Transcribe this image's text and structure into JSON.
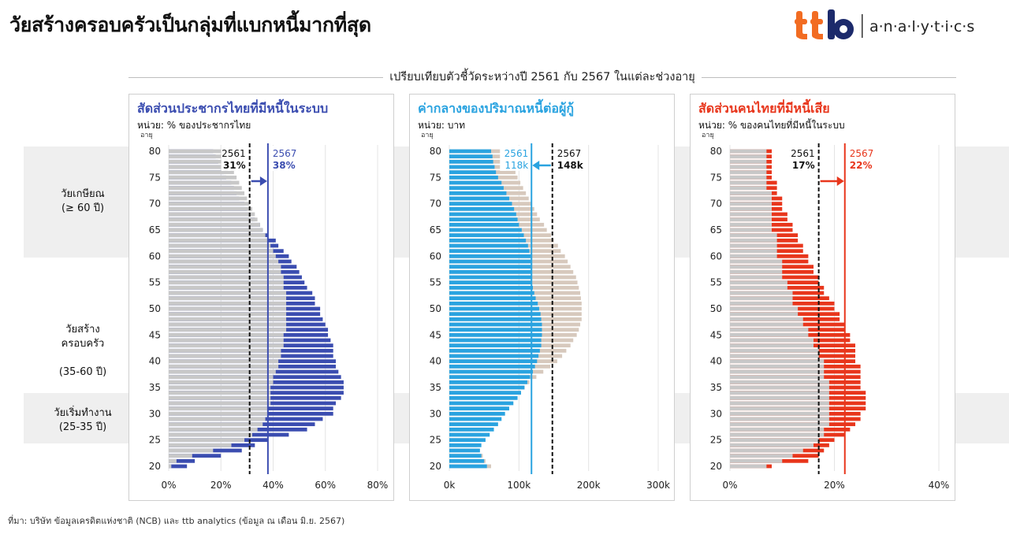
{
  "title": "วัยสร้างครอบครัวเป็นกลุ่มที่แบกหนี้มากที่สุด",
  "logo": {
    "mark": "ttb",
    "text": "a·n·a·l·y·t·i·c·s"
  },
  "subtitle": "เปรียบเทียบตัวชี้วัดระหว่างปี 2561 กับ 2567 ในแต่ละช่วงอายุ",
  "age_groups": [
    {
      "label": "วัยเกษียณ",
      "range": "(≥ 60 ปี)"
    },
    {
      "label": "วัยสร้าง\nครอบครัว",
      "range": "(35-60 ปี)"
    },
    {
      "label": "วัยเริ่มทำงาน",
      "range": "(25-35 ปี)"
    }
  ],
  "source": "ที่มา: บริษัท ข้อมูลเครดิตแห่งชาติ (NCB) และ ttb analytics (ข้อมูล ณ เดือน มิ.ย. 2567)",
  "colors": {
    "blue": "#3b4db0",
    "sky": "#2aa3e0",
    "red": "#e8361c",
    "grey": "#c8c8c8",
    "beige": "#d7c9bd",
    "lightblue": "#bfe3f2"
  },
  "chart_data": [
    {
      "type": "bar",
      "orientation": "horizontal",
      "title": "สัดส่วนประชากรไทยที่มีหนี้ในระบบ",
      "unit": "หน่วย: % ของประชากรไทย",
      "ylabel": "อายุ",
      "age_range": [
        20,
        80
      ],
      "y_ticks": [
        "80",
        "75",
        "70",
        "65",
        "60",
        "55",
        "50",
        "45",
        "40",
        "35",
        "30",
        "25",
        "20"
      ],
      "x_ticks": [
        "0%",
        "20%",
        "40%",
        "60%",
        "80%"
      ],
      "xlim": [
        0,
        80
      ],
      "series": [
        {
          "name": "2561",
          "values": [
            1,
            3,
            9,
            17,
            24,
            29,
            32,
            34,
            36,
            37,
            38,
            38,
            39,
            39,
            39,
            39,
            40,
            40,
            41,
            42,
            42,
            43,
            43,
            44,
            44,
            44,
            45,
            45,
            45,
            45,
            45,
            45,
            45,
            45,
            44,
            44,
            44,
            43,
            43,
            42,
            41,
            40,
            39,
            38,
            37,
            36,
            35,
            34,
            33,
            32,
            31,
            30,
            29,
            28,
            27,
            26,
            25,
            24,
            23,
            22,
            21
          ]
        },
        {
          "name": "2567",
          "values": [
            7,
            10,
            20,
            28,
            33,
            38,
            46,
            53,
            56,
            59,
            63,
            63,
            64,
            66,
            67,
            67,
            67,
            66,
            65,
            64,
            64,
            63,
            63,
            63,
            62,
            61,
            61,
            60,
            59,
            58,
            58,
            56,
            56,
            55,
            53,
            52,
            51,
            50,
            49,
            47,
            46,
            44,
            42,
            41,
            38,
            36,
            35,
            33,
            31,
            30,
            29,
            27,
            26,
            25,
            24,
            22,
            21,
            20,
            19,
            18,
            17
          ]
        }
      ],
      "reference_lines": [
        {
          "label": "2561",
          "value": 31,
          "value_label": "31%"
        },
        {
          "label": "2567",
          "value": 38,
          "value_label": "38%"
        }
      ]
    },
    {
      "type": "bar",
      "orientation": "horizontal",
      "title": "ค่ากลางของปริมาณหนี้ต่อผู้กู้",
      "unit": "หน่วย: บาท",
      "ylabel": "อายุ",
      "age_range": [
        20,
        80
      ],
      "y_ticks": [
        "80",
        "75",
        "70",
        "65",
        "60",
        "55",
        "50",
        "45",
        "40",
        "35",
        "30",
        "25",
        "20"
      ],
      "x_ticks": [
        "0k",
        "100k",
        "200k",
        "300k"
      ],
      "xlim": [
        0,
        300
      ],
      "series": [
        {
          "name": "2561",
          "values": [
            60,
            52,
            48,
            42,
            40,
            40,
            45,
            52,
            60,
            66,
            74,
            82,
            88,
            96,
            102,
            108,
            115,
            125,
            135,
            145,
            155,
            162,
            168,
            174,
            178,
            183,
            186,
            188,
            190,
            190,
            190,
            190,
            189,
            188,
            186,
            184,
            182,
            178,
            174,
            170,
            166,
            160,
            156,
            150,
            146,
            140,
            136,
            130,
            126,
            122,
            118,
            114,
            110,
            106,
            102,
            98,
            95,
            92,
            90,
            88,
            85
          ]
        },
        {
          "name": "2567",
          "values": [
            54,
            50,
            46,
            44,
            46,
            52,
            58,
            64,
            70,
            75,
            80,
            86,
            92,
            98,
            103,
            108,
            112,
            116,
            120,
            123,
            126,
            128,
            130,
            132,
            132,
            133,
            133,
            133,
            132,
            131,
            129,
            127,
            124,
            122,
            120,
            118,
            118,
            118,
            117,
            117,
            117,
            115,
            113,
            110,
            107,
            104,
            100,
            98,
            96,
            93,
            90,
            86,
            82,
            78,
            75,
            70,
            67,
            65,
            63,
            62,
            60
          ]
        }
      ],
      "reference_lines": [
        {
          "label": "2561",
          "value": 118,
          "value_label": "118k"
        },
        {
          "label": "2567",
          "value": 148,
          "value_label": "148k"
        }
      ]
    },
    {
      "type": "bar",
      "orientation": "horizontal",
      "title": "สัดส่วนคนไทยที่มีหนี้เสีย",
      "unit": "หน่วย: % ของคนไทยที่มีหนี้ในระบบ",
      "ylabel": "อายุ",
      "age_range": [
        20,
        80
      ],
      "y_ticks": [
        "80",
        "75",
        "70",
        "65",
        "60",
        "55",
        "50",
        "45",
        "40",
        "35",
        "30",
        "25",
        "20"
      ],
      "x_ticks": [
        "0%",
        "20%",
        "40%"
      ],
      "xlim": [
        0,
        40
      ],
      "series": [
        {
          "name": "2561",
          "values": [
            7,
            10,
            12,
            14,
            16,
            17,
            18,
            18,
            19,
            19,
            19,
            19,
            19,
            19,
            19,
            19,
            19,
            18,
            18,
            18,
            18,
            17,
            17,
            16,
            16,
            15,
            15,
            14,
            14,
            13,
            13,
            12,
            12,
            12,
            11,
            11,
            10,
            10,
            10,
            10,
            9,
            9,
            9,
            9,
            9,
            8,
            8,
            8,
            8,
            8,
            8,
            8,
            8,
            7,
            7,
            7,
            7,
            7,
            7,
            7,
            7
          ]
        },
        {
          "name": "2567",
          "values": [
            8,
            15,
            17,
            18,
            19,
            20,
            22,
            23,
            24,
            25,
            25,
            26,
            26,
            26,
            26,
            25,
            25,
            25,
            25,
            25,
            24,
            24,
            24,
            24,
            23,
            23,
            22,
            22,
            21,
            21,
            20,
            20,
            19,
            18,
            18,
            17,
            17,
            16,
            16,
            15,
            15,
            14,
            14,
            13,
            13,
            12,
            12,
            11,
            11,
            10,
            10,
            10,
            9,
            9,
            9,
            8,
            8,
            8,
            8,
            8,
            8
          ]
        }
      ],
      "reference_lines": [
        {
          "label": "2561",
          "value": 17,
          "value_label": "17%"
        },
        {
          "label": "2567",
          "value": 22,
          "value_label": "22%"
        }
      ]
    }
  ]
}
